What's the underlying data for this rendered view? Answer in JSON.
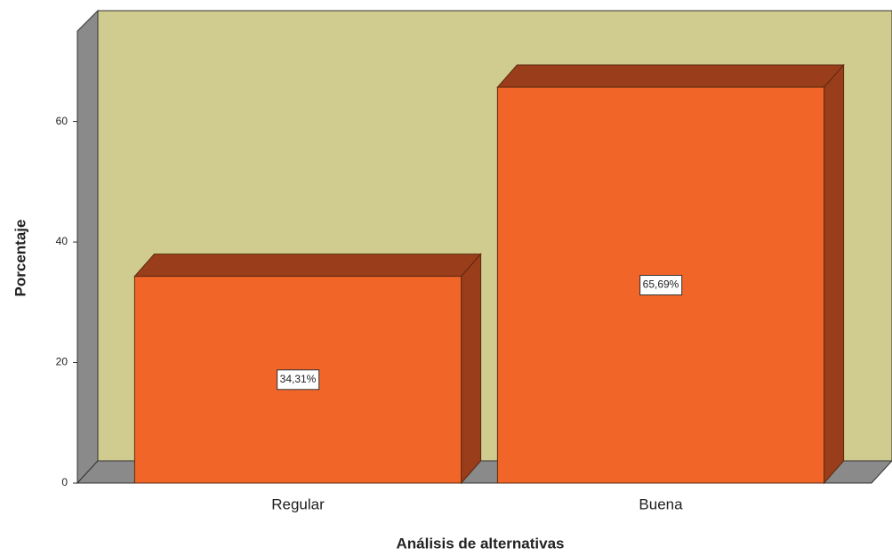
{
  "chart_data": {
    "type": "bar",
    "x_label": "Análisis de alternativas",
    "y_label": "Porcentaje",
    "categories": [
      "Regular",
      "Buena"
    ],
    "values": [
      34.31,
      65.69
    ],
    "value_labels": [
      "34,31%",
      "65,69%"
    ],
    "color": "#f26529",
    "ylim": [
      0,
      75
    ],
    "yticks": [
      0,
      20,
      40,
      60
    ]
  }
}
